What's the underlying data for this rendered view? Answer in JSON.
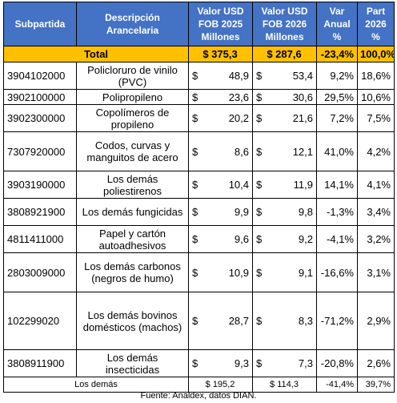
{
  "table": {
    "headers": {
      "subpartida": "Subpartida",
      "descripcion": "Descripción Arancelaria",
      "valor2025": "Valor USD FOB 2025 Millones",
      "valor2026": "Valor USD FOB 2026 Millones",
      "var": "Var Anual %",
      "part": "Part 2026 %"
    },
    "total": {
      "label": "Total",
      "v2025": "$ 375,3",
      "v2026": "$ 287,6",
      "var": "-23,4%",
      "part": "100,0%"
    },
    "currency": "$",
    "rows": [
      {
        "code": "3904102000",
        "desc": "Policloruro de vinilo (PVC)",
        "v2025": "48,9",
        "v2026": "53,4",
        "var": "9,2%",
        "part": "18,6%"
      },
      {
        "code": "3902100000",
        "desc": "Polipropileno",
        "v2025": "23,6",
        "v2026": "30,6",
        "var": "29,5%",
        "part": "10,6%"
      },
      {
        "code": "3902300000",
        "desc": "Copolímeros de propileno",
        "v2025": "20,2",
        "v2026": "21,6",
        "var": "7,2%",
        "part": "7,5%"
      },
      {
        "code": "7307920000",
        "desc": "Codos, curvas y manguitos de acero",
        "v2025": "8,6",
        "v2026": "12,1",
        "var": "41,0%",
        "part": "4,2%"
      },
      {
        "code": "3903190000",
        "desc": "Los demás poliestirenos",
        "v2025": "10,4",
        "v2026": "11,9",
        "var": "14,1%",
        "part": "4,1%"
      },
      {
        "code": "3808921900",
        "desc": "Los demás fungicidas",
        "v2025": "9,9",
        "v2026": "9,8",
        "var": "-1,3%",
        "part": "3,4%"
      },
      {
        "code": "4811411000",
        "desc": "Papel y cartón autoadhesivos",
        "v2025": "9,6",
        "v2026": "9,2",
        "var": "-4,1%",
        "part": "3,2%"
      },
      {
        "code": "2803009000",
        "desc": "Los demás carbonos (negros de humo)",
        "v2025": "10,9",
        "v2026": "9,1",
        "var": "-16,6%",
        "part": "3,1%"
      },
      {
        "code": "102299020",
        "desc": "Los demás bovinos domésticos (machos)",
        "v2025": "28,7",
        "v2026": "8,3",
        "var": "-71,2%",
        "part": "2,9%"
      },
      {
        "code": "3808911900",
        "desc": "Los demás insecticidas",
        "v2025": "9,3",
        "v2026": "7,3",
        "var": "-20,8%",
        "part": "2,6%"
      }
    ],
    "footer": {
      "label": "Los demás",
      "v2025": "$ 195,2",
      "v2026": "$ 114,3",
      "var": "-41,4%",
      "part": "39,7%"
    }
  },
  "source": "Fuente: Analdex, datos DIAN."
}
